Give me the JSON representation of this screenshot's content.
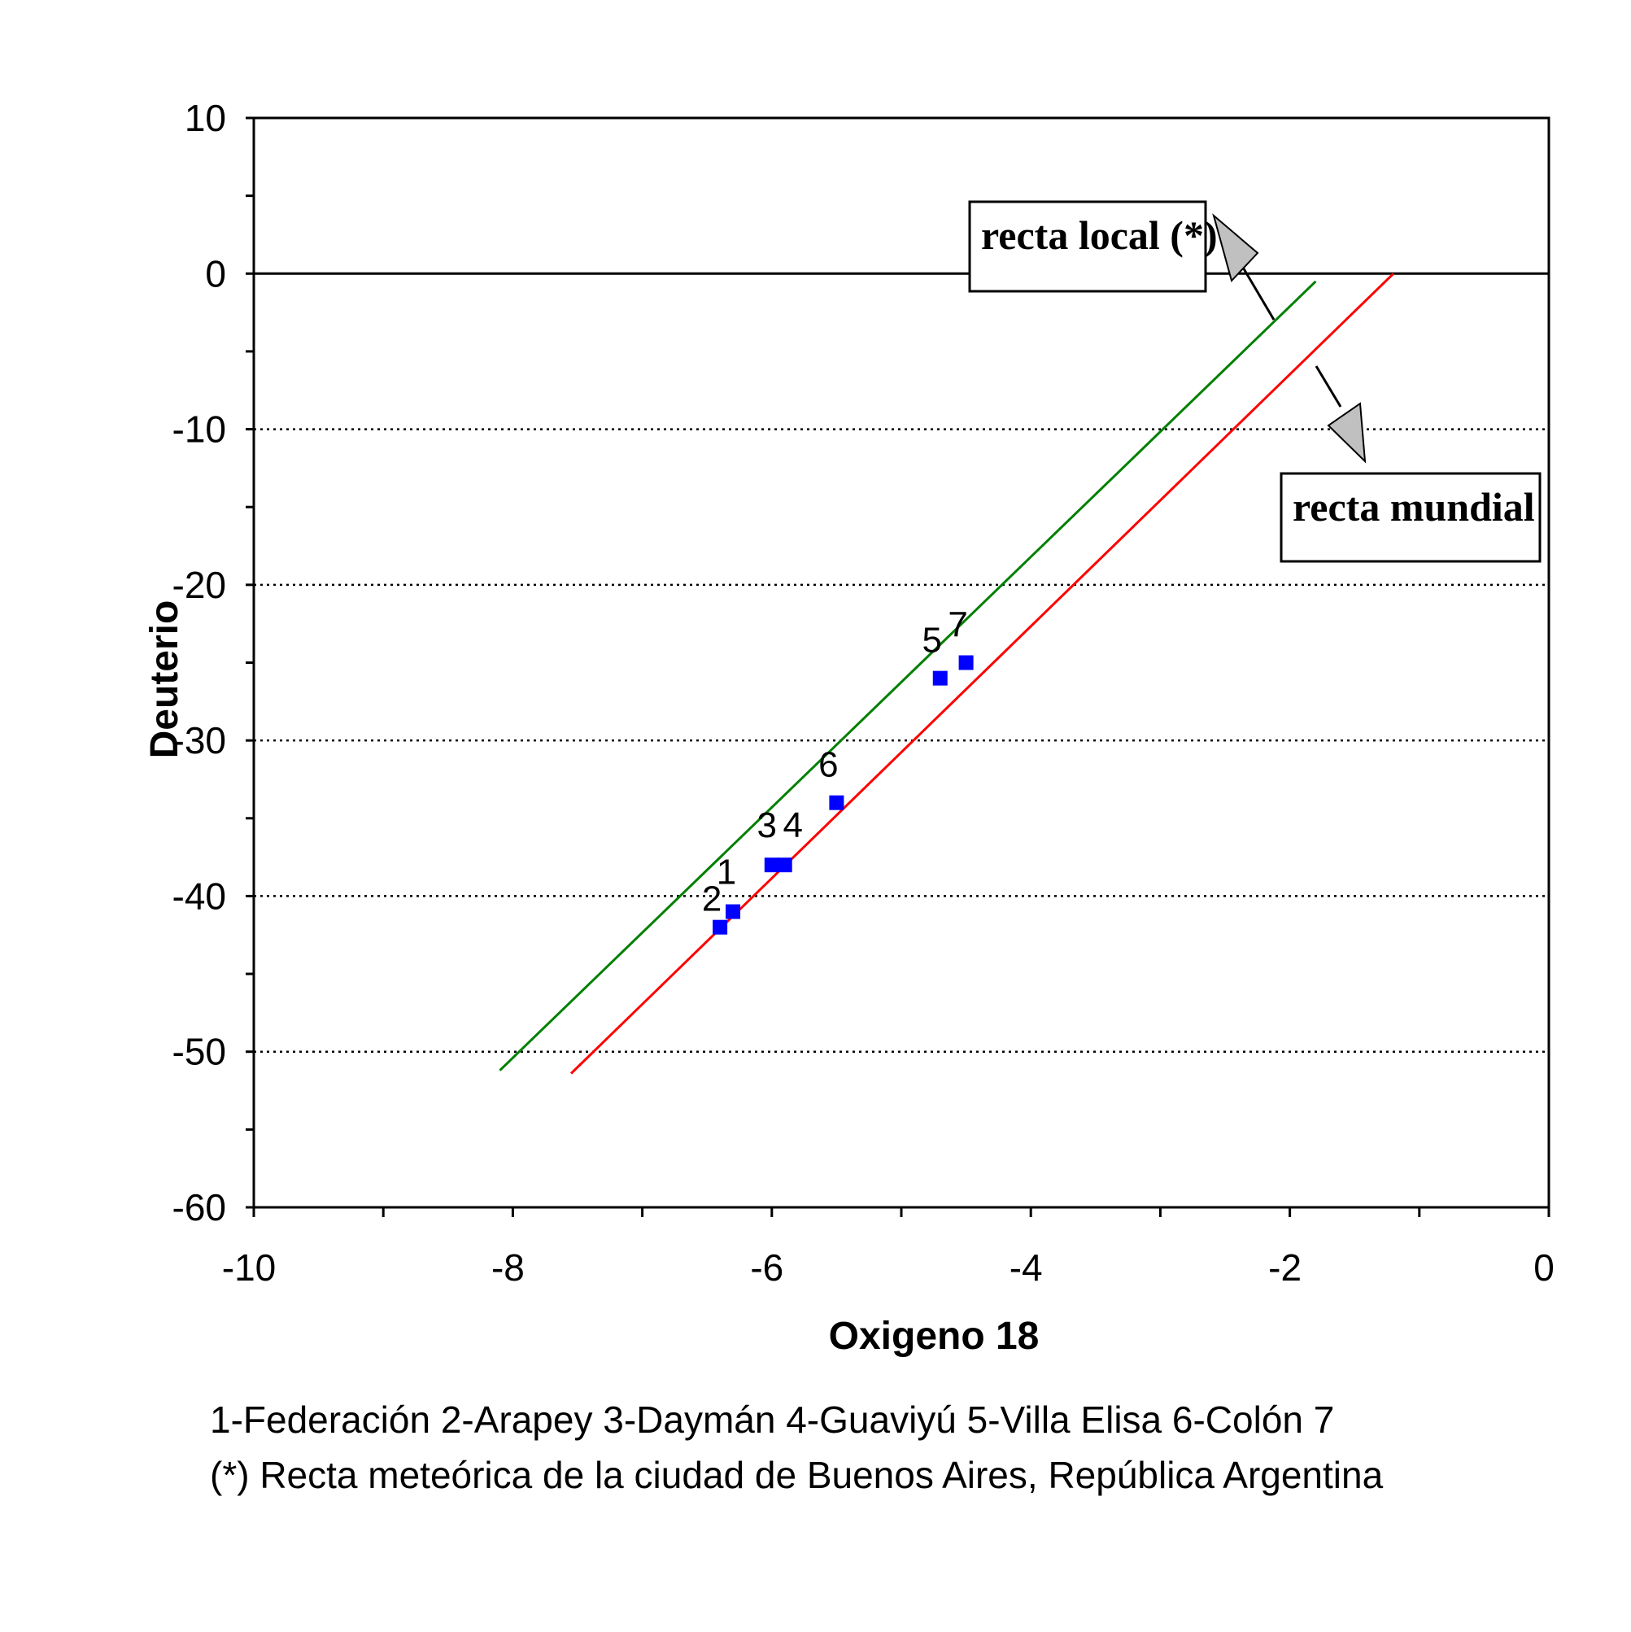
{
  "chart_data": {
    "type": "scatter",
    "xlabel": "Oxigeno 18",
    "ylabel": "Deuterio",
    "xlim": [
      -10,
      0
    ],
    "ylim": [
      -60,
      10
    ],
    "x_ticks": [
      -10,
      -8,
      -6,
      -4,
      -2,
      0
    ],
    "y_ticks": [
      10,
      0,
      -10,
      -20,
      -30,
      -40,
      -50,
      -60
    ],
    "gridlines_y": [
      -10,
      -20,
      -30,
      -40,
      -50
    ],
    "grid": "horizontal dotted",
    "points": [
      {
        "label": "1",
        "x": -6.3,
        "y": -41
      },
      {
        "label": "2",
        "x": -6.4,
        "y": -42
      },
      {
        "label": "3",
        "x": -6.0,
        "y": -38
      },
      {
        "label": "4",
        "x": -5.9,
        "y": -38
      },
      {
        "label": "5",
        "x": -4.7,
        "y": -26
      },
      {
        "label": "6",
        "x": -5.5,
        "y": -34
      },
      {
        "label": "7",
        "x": -4.5,
        "y": -25
      }
    ],
    "point_color": "#0000ff",
    "lines": [
      {
        "name": "recta local (*)",
        "color": "#008000",
        "x": [
          -8.1,
          -1.8
        ],
        "y": [
          -51.2,
          -0.5
        ]
      },
      {
        "name": "recta mundial",
        "color": "#ff0000",
        "x": [
          -7.55,
          -1.2
        ],
        "y": [
          -51.4,
          0.0
        ]
      }
    ],
    "annotations": [
      {
        "text": "recta local (*)"
      },
      {
        "text": "recta mundial"
      }
    ]
  },
  "footnotes": {
    "line1": "1-Federación   2-Arapey  3-Daymán  4-Guaviyú  5-Villa Elisa  6-Colón  7",
    "line2": "(*) Recta meteórica de la ciudad de Buenos Aires, República Argentina"
  }
}
